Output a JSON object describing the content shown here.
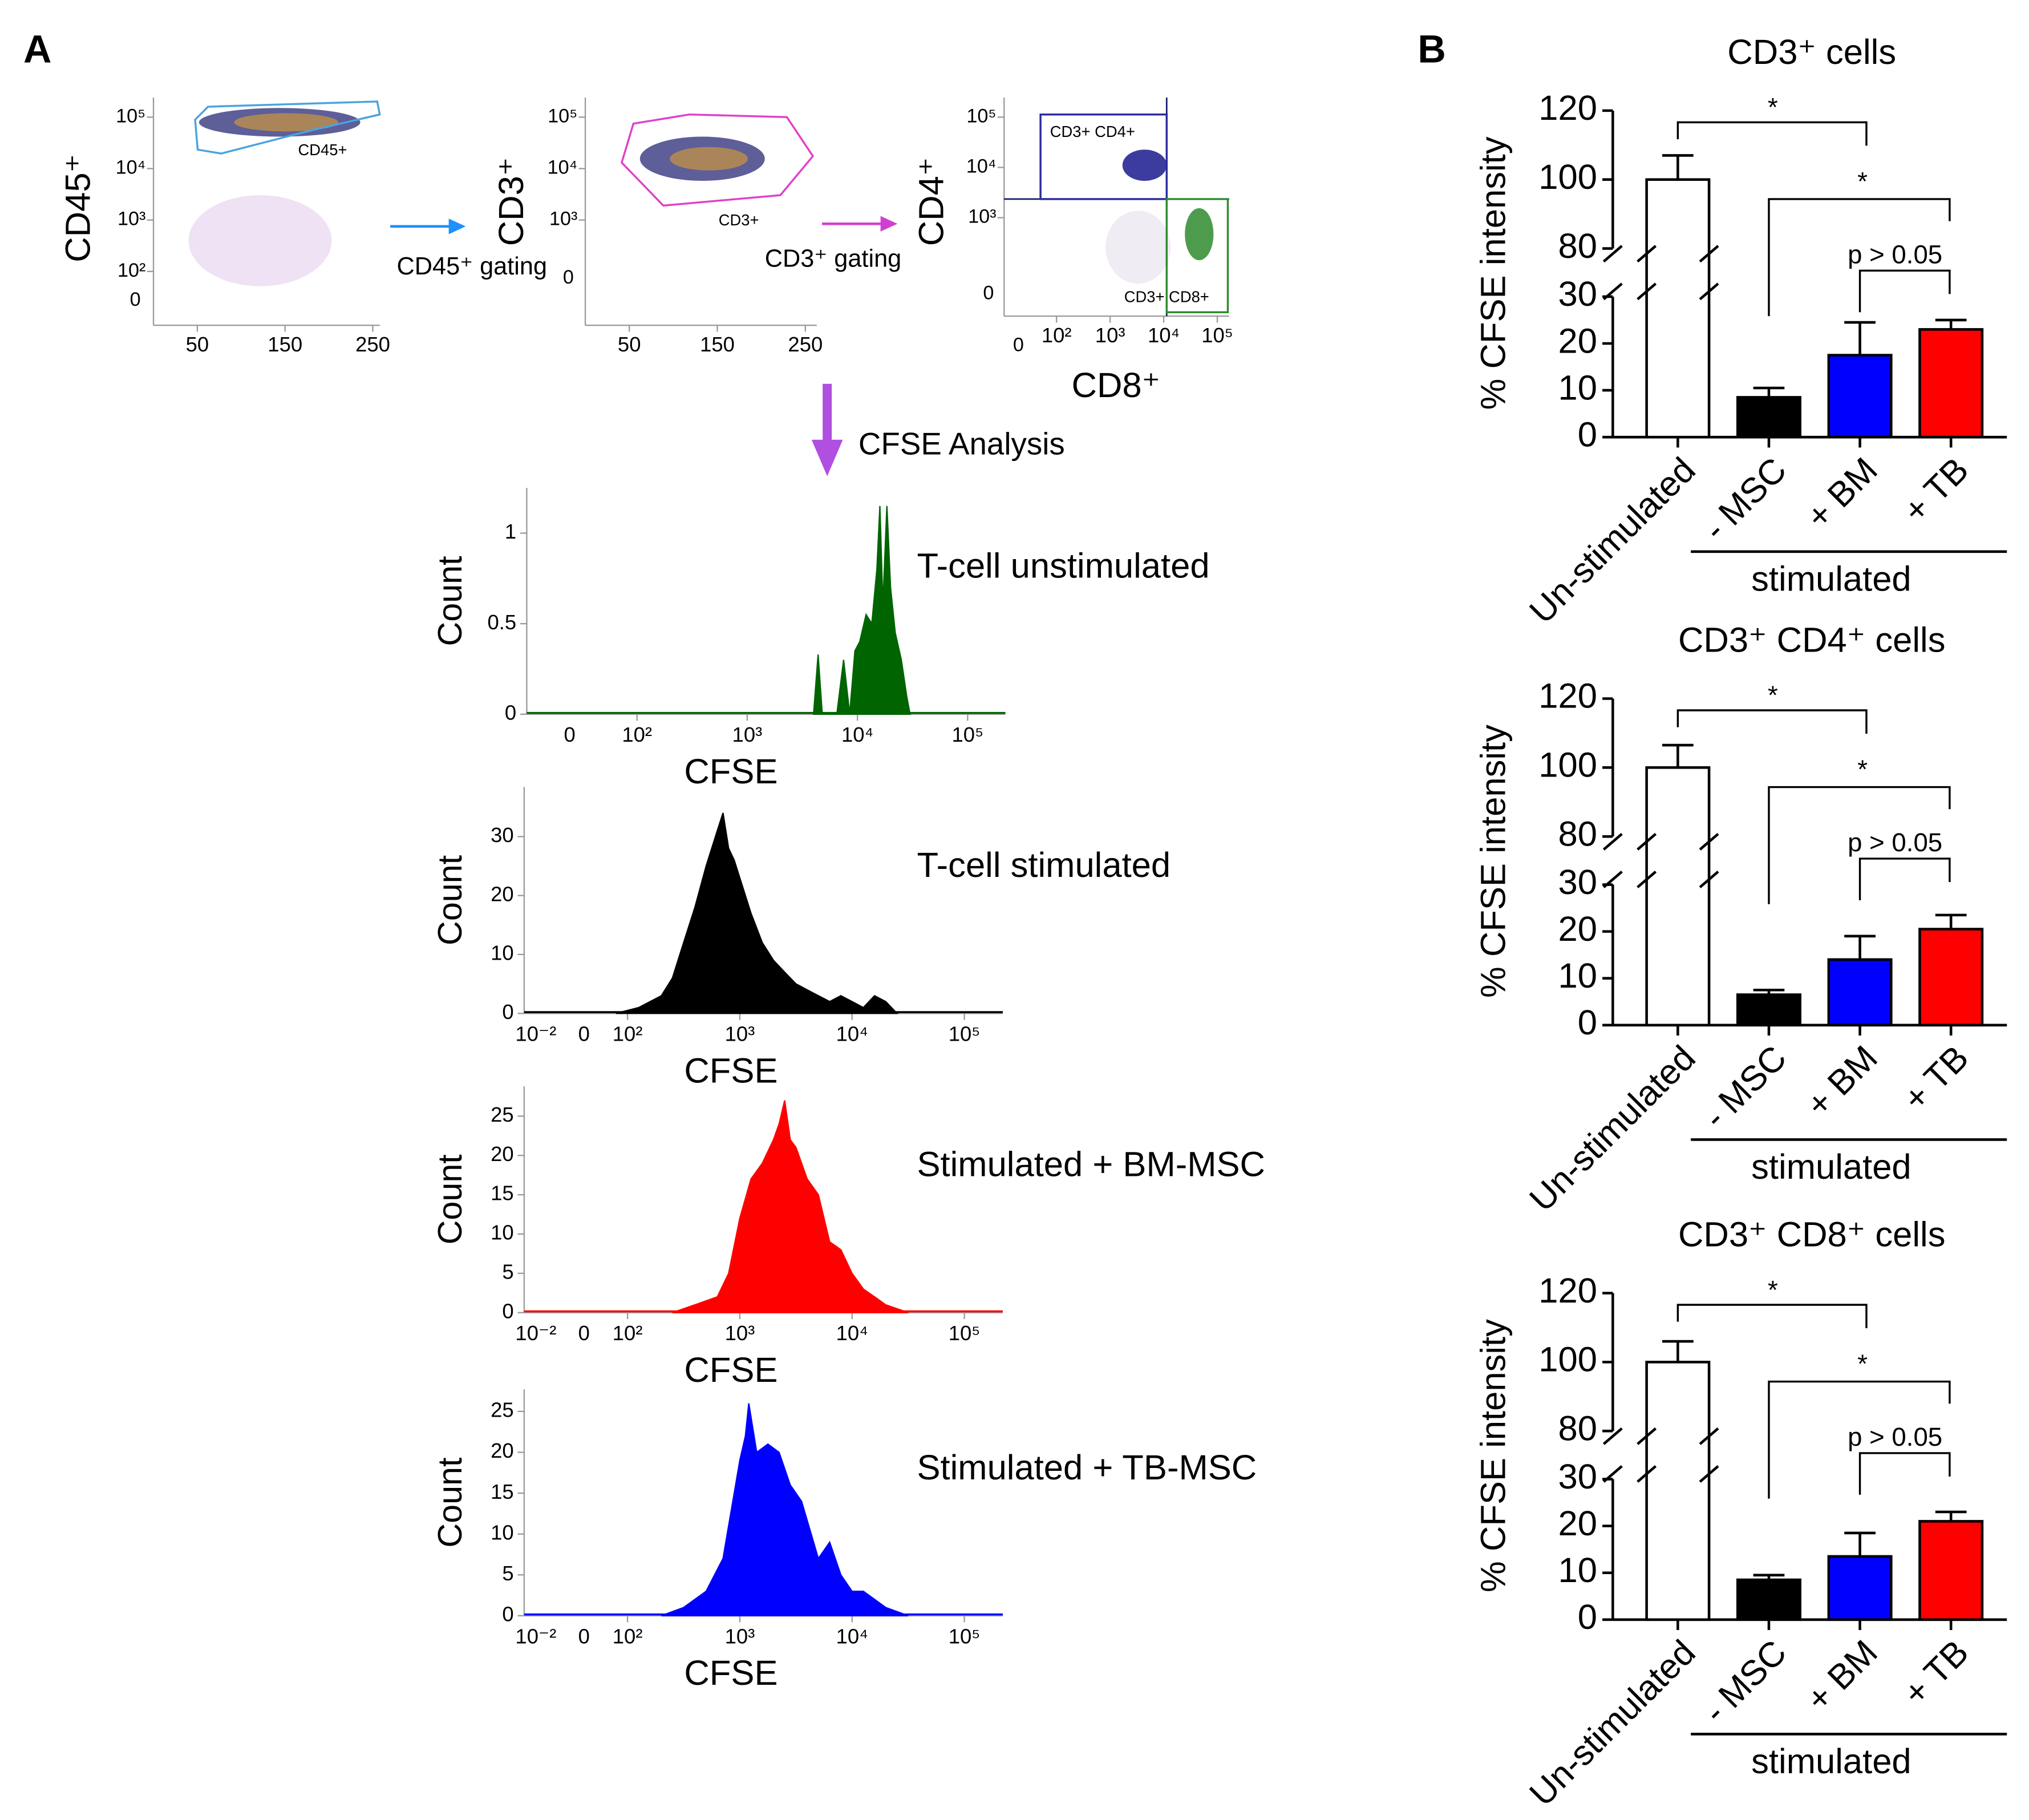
{
  "panel_labels": [
    "A",
    "B"
  ],
  "gating_text": {
    "arrow1": "CD45⁺ gating",
    "arrow2": "CD3⁺ gating",
    "arrow3": "CFSE Analysis"
  },
  "chart_data": [
    {
      "type": "scatter",
      "ylabel": "CD45⁺",
      "xlim": [
        0,
        258
      ],
      "xticks": [
        50,
        150,
        250
      ],
      "ylim": [
        9,
        240000
      ],
      "yscale": "log",
      "yticks": [
        {
          "value": 100000,
          "label": "10⁵"
        },
        {
          "value": 10000,
          "label": "10⁴"
        },
        {
          "value": 1000,
          "label": "10³"
        },
        {
          "value": 100,
          "label": "10²"
        }
      ],
      "extra_ylabels": [
        "0"
      ],
      "gate_labels": [
        "CD45+"
      ],
      "gate_colors": [
        "#4aa3df"
      ]
    },
    {
      "type": "scatter",
      "ylabel": "CD3⁺",
      "xlim": [
        0,
        263
      ],
      "xticks": [
        50,
        150,
        250
      ],
      "ylim": [
        9,
        240000
      ],
      "yscale": "log",
      "yticks": [
        {
          "value": 100000,
          "label": "10⁵"
        },
        {
          "value": 10000,
          "label": "10⁴"
        },
        {
          "value": 1000,
          "label": "10³"
        }
      ],
      "extra_ylabels": [
        "0"
      ],
      "gate_labels": [
        "CD3+"
      ],
      "gate_colors": [
        "#e040c8"
      ]
    },
    {
      "type": "scatter",
      "ylabel": "CD4⁺",
      "xlabel": "CD8⁺",
      "xlim": [
        10.5,
        166000
      ],
      "xscale": "log",
      "xticks": [
        {
          "value": 100,
          "label": "10²"
        },
        {
          "value": 1000,
          "label": "10³"
        },
        {
          "value": 10000,
          "label": "10⁴"
        },
        {
          "value": 100000,
          "label": "10⁵"
        }
      ],
      "extra_xlabels": [
        "0"
      ],
      "ylim": [
        11,
        245000
      ],
      "yscale": "log",
      "yticks": [
        {
          "value": 100000,
          "label": "10⁵"
        },
        {
          "value": 10000,
          "label": "10⁴"
        },
        {
          "value": 1000,
          "label": "10³"
        }
      ],
      "extra_ylabels": [
        "0"
      ],
      "gate_labels": [
        "CD3+ CD4+",
        "CD3+ CD8+"
      ],
      "gate_colors": [
        "#2a2aa0",
        "#2e8b2e"
      ]
    },
    {
      "type": "area",
      "title": "T-cell unstimulated",
      "xlabel": "CFSE",
      "ylabel": "Count",
      "color": "#006400",
      "xscale": "log",
      "xlim": [
        10,
        220000
      ],
      "xticks": [
        {
          "value": 100,
          "label": "10²"
        },
        {
          "value": 1000,
          "label": "10³"
        },
        {
          "value": 10000,
          "label": "10⁴"
        },
        {
          "value": 100000,
          "label": "10⁵"
        }
      ],
      "extra_xlabels": [
        "0"
      ],
      "ylim": [
        0,
        1.25
      ],
      "yticks": [
        0,
        0.5,
        1
      ],
      "x": [
        4000,
        4400,
        4800,
        6500,
        7500,
        8500,
        9500,
        10500,
        12000,
        13500,
        15000,
        16000,
        17000,
        18500,
        20000,
        22000,
        25000,
        28000,
        30000
      ],
      "values": [
        0,
        0.33,
        0,
        0,
        0.3,
        0,
        0.35,
        0.4,
        0.55,
        0.5,
        0.8,
        1.15,
        0.6,
        1.15,
        0.7,
        0.45,
        0.3,
        0.1,
        0
      ]
    },
    {
      "type": "area",
      "title": "T-cell stimulated",
      "xlabel": "CFSE",
      "ylabel": "Count",
      "color": "#000000",
      "xscale": "log",
      "xlim": [
        12,
        220000
      ],
      "xticks": [
        {
          "value": 100,
          "label": "10²"
        },
        {
          "value": 1000,
          "label": "10³"
        },
        {
          "value": 10000,
          "label": "10⁴"
        },
        {
          "value": 100000,
          "label": "10⁵"
        }
      ],
      "extra_xlabels": [
        "10⁻²",
        "0"
      ],
      "ylim": [
        0,
        38.4
      ],
      "yticks": [
        0,
        10,
        20,
        30
      ],
      "x": [
        79,
        126,
        200,
        251,
        316,
        398,
        501,
        562,
        631,
        708,
        794,
        891,
        1000,
        1259,
        1585,
        1995,
        2512,
        3162,
        3981,
        5012,
        6310,
        7943,
        10000,
        12589,
        15849,
        19953,
        25119
      ],
      "values": [
        0,
        1,
        3,
        6,
        12,
        18,
        25,
        28,
        31,
        34,
        28,
        26,
        23,
        17,
        12,
        9,
        7,
        5,
        4,
        3,
        2,
        3,
        2,
        1,
        3,
        2,
        0
      ]
    },
    {
      "type": "area",
      "title": "Stimulated + BM-MSC",
      "xlabel": "CFSE",
      "ylabel": "Count",
      "color": "#ff0000",
      "xscale": "log",
      "xlim": [
        12,
        220000
      ],
      "xticks": [
        {
          "value": 100,
          "label": "10²"
        },
        {
          "value": 1000,
          "label": "10³"
        },
        {
          "value": 10000,
          "label": "10⁴"
        },
        {
          "value": 100000,
          "label": "10⁵"
        }
      ],
      "extra_xlabels": [
        "10⁻²",
        "0"
      ],
      "ylim": [
        0,
        28.8
      ],
      "yticks": [
        0,
        5,
        10,
        15,
        20,
        25
      ],
      "x": [
        251,
        398,
        631,
        794,
        1000,
        1259,
        1585,
        1995,
        2239,
        2512,
        2818,
        3162,
        3981,
        5012,
        6310,
        7943,
        10000,
        12589,
        15849,
        19953,
        31623
      ],
      "values": [
        0,
        1,
        2,
        5,
        12,
        17,
        19,
        22,
        24,
        27,
        22,
        21,
        17,
        15,
        9,
        8,
        5,
        3,
        2,
        1,
        0
      ]
    },
    {
      "type": "area",
      "title": "Stimulated + TB-MSC",
      "xlabel": "CFSE",
      "ylabel": "Count",
      "color": "#0000ff",
      "xscale": "log",
      "xlim": [
        12,
        220000
      ],
      "xticks": [
        {
          "value": 100,
          "label": "10²"
        },
        {
          "value": 1000,
          "label": "10³"
        },
        {
          "value": 10000,
          "label": "10⁴"
        },
        {
          "value": 100000,
          "label": "10⁵"
        }
      ],
      "extra_xlabels": [
        "10⁻²",
        "0"
      ],
      "ylim": [
        0,
        27.7
      ],
      "yticks": [
        0,
        5,
        10,
        15,
        20,
        25
      ],
      "x": [
        200,
        316,
        501,
        708,
        891,
        1000,
        1122,
        1202,
        1413,
        1778,
        2239,
        2818,
        3548,
        5012,
        6310,
        7943,
        10000,
        12589,
        19953,
        31623
      ],
      "values": [
        0,
        1,
        3,
        7,
        15,
        19,
        22,
        26,
        20,
        21,
        20,
        16,
        14,
        7,
        9,
        5,
        3,
        3,
        1,
        0
      ]
    },
    {
      "type": "bar",
      "title": "CD3⁺ cells",
      "ylabel": "% CFSE intensity",
      "group_label": "stimulated",
      "categories": [
        "Un-stimulated",
        "- MSC",
        "+ BM",
        "+ TB"
      ],
      "values": [
        100,
        8.5,
        17.5,
        23
      ],
      "errors": [
        7,
        2,
        7,
        2
      ],
      "colors": [
        "#ffffff",
        "#000000",
        "#0000ff",
        "#ff0000"
      ],
      "ylim": [
        0,
        120
      ],
      "ybreak": [
        30,
        80
      ],
      "yticks": [
        0,
        10,
        20,
        30,
        80,
        100,
        120
      ],
      "annotations": [
        "*",
        "*",
        "p > 0.05"
      ]
    },
    {
      "type": "bar",
      "title": "CD3⁺ CD4⁺ cells",
      "ylabel": "% CFSE intensity",
      "group_label": "stimulated",
      "categories": [
        "Un-stimulated",
        "- MSC",
        "+ BM",
        "+ TB"
      ],
      "values": [
        100,
        6.5,
        14,
        20.5
      ],
      "errors": [
        6.5,
        1,
        5,
        3
      ],
      "colors": [
        "#ffffff",
        "#000000",
        "#0000ff",
        "#ff0000"
      ],
      "ylim": [
        0,
        120
      ],
      "ybreak": [
        30,
        80
      ],
      "yticks": [
        0,
        10,
        20,
        30,
        80,
        100,
        120
      ],
      "annotations": [
        "*",
        "*",
        "p > 0.05"
      ]
    },
    {
      "type": "bar",
      "title": "CD3⁺ CD8⁺ cells",
      "ylabel": "% CFSE intensity",
      "group_label": "stimulated",
      "categories": [
        "Un-stimulated",
        "- MSC",
        "+ BM",
        "+ TB"
      ],
      "values": [
        100,
        8.5,
        13.5,
        21
      ],
      "errors": [
        6,
        1,
        5,
        2
      ],
      "colors": [
        "#ffffff",
        "#000000",
        "#0000ff",
        "#ff0000"
      ],
      "ylim": [
        0,
        120
      ],
      "ybreak": [
        30,
        80
      ],
      "yticks": [
        0,
        10,
        20,
        30,
        80,
        100,
        120
      ],
      "annotations": [
        "*",
        "*",
        "p > 0.05"
      ]
    }
  ]
}
